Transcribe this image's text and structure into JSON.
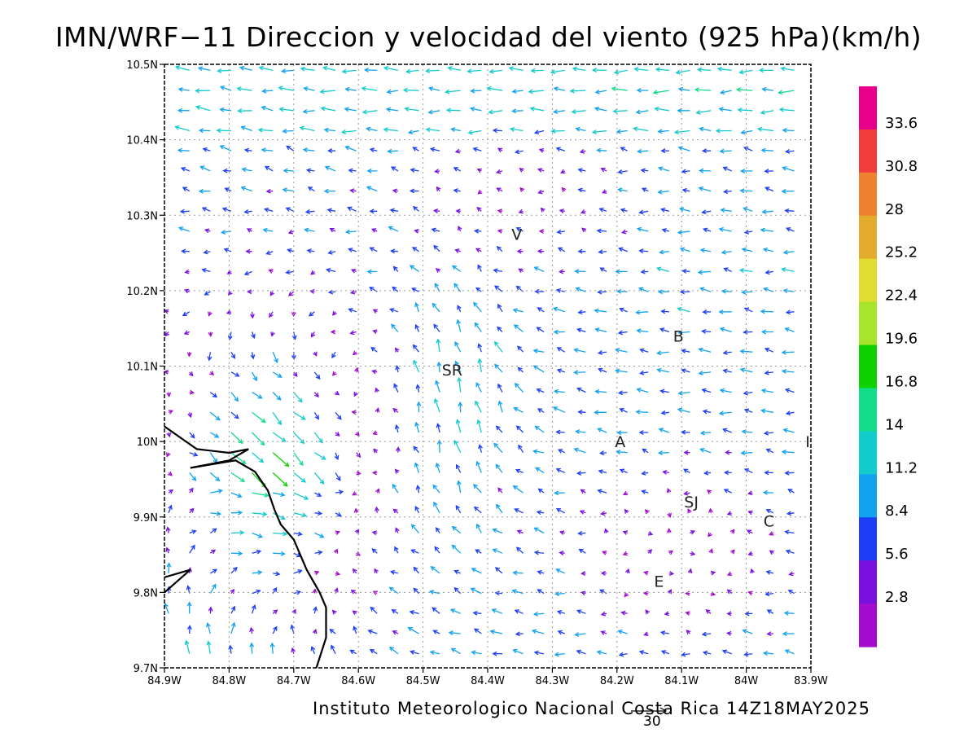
{
  "title": "IMN/WRF−11 Direccion y velocidad del viento (925 hPa)(km/h)",
  "footer": "Instituto Meteorologico Nacional Costa Rica  14Z18MAY2025",
  "scale_label": "30",
  "y_ticks": [
    "10.5N",
    "10.4N",
    "10.3N",
    "10.2N",
    "10.1N",
    "10N",
    "9.9N",
    "9.8N",
    "9.7N"
  ],
  "x_ticks": [
    "84.9W",
    "84.8W",
    "84.7W",
    "84.6W",
    "84.5W",
    "84.4W",
    "84.3W",
    "84.2W",
    "84.1W",
    "84W",
    "83.9W"
  ],
  "places": [
    {
      "label": "V",
      "lon": -84.355,
      "lat": 10.275
    },
    {
      "label": "B",
      "lon": -84.105,
      "lat": 10.14
    },
    {
      "label": "SR",
      "lon": -84.455,
      "lat": 10.095
    },
    {
      "label": "A",
      "lon": -84.195,
      "lat": 10.0
    },
    {
      "label": "I",
      "lon": -83.905,
      "lat": 10.0
    },
    {
      "label": "SJ",
      "lon": -84.085,
      "lat": 9.92
    },
    {
      "label": "C",
      "lon": -83.965,
      "lat": 9.895
    },
    {
      "label": "E",
      "lon": -84.135,
      "lat": 9.815
    }
  ],
  "colorbar": {
    "labels": [
      "33.6",
      "30.8",
      "28",
      "25.2",
      "22.4",
      "19.6",
      "16.8",
      "14",
      "11.2",
      "8.4",
      "5.6",
      "2.8"
    ],
    "colors": [
      "#e8008a",
      "#f23d3d",
      "#ee8230",
      "#e3ab2d",
      "#e0dc31",
      "#a6e52a",
      "#10d100",
      "#11dd8a",
      "#12cbcc",
      "#12a2f0",
      "#1e3ef6",
      "#7a10e0",
      "#a20ccc"
    ]
  }
}
